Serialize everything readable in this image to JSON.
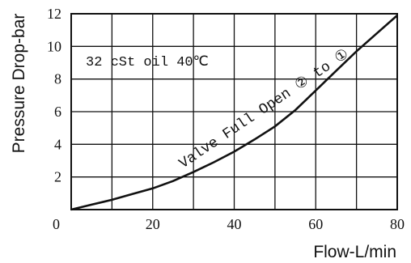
{
  "chart_data": {
    "type": "line",
    "title": "",
    "xlabel": "Flow-L/min",
    "ylabel": "Pressure Drop-bar",
    "xlim": [
      0,
      80
    ],
    "ylim": [
      0,
      12
    ],
    "x_ticks": [
      0,
      20,
      40,
      60,
      80
    ],
    "y_ticks": [
      2,
      4,
      6,
      8,
      10,
      12
    ],
    "x_tick_labels": [
      "0",
      "20",
      "40",
      "60",
      "80"
    ],
    "y_tick_labels": [
      "2",
      "4",
      "6",
      "8",
      "10",
      "12"
    ],
    "grid": true,
    "annotations": {
      "fluid": "32 cSt oil 40℃",
      "curve_label": "Valve Full Open ② to ①"
    },
    "series": [
      {
        "values_xy": [
          [
            0,
            0
          ],
          [
            5,
            0.3
          ],
          [
            10,
            0.6
          ],
          [
            15,
            0.95
          ],
          [
            20,
            1.3
          ],
          [
            25,
            1.75
          ],
          [
            30,
            2.3
          ],
          [
            35,
            2.9
          ],
          [
            40,
            3.55
          ],
          [
            45,
            4.3
          ],
          [
            50,
            5.1
          ],
          [
            55,
            6.1
          ],
          [
            60,
            7.3
          ],
          [
            65,
            8.5
          ],
          [
            70,
            9.7
          ],
          [
            75,
            10.8
          ],
          [
            80,
            11.9
          ]
        ]
      }
    ],
    "colors": {
      "line": "#111111",
      "grid": "#111111",
      "background": "#ffffff"
    }
  }
}
